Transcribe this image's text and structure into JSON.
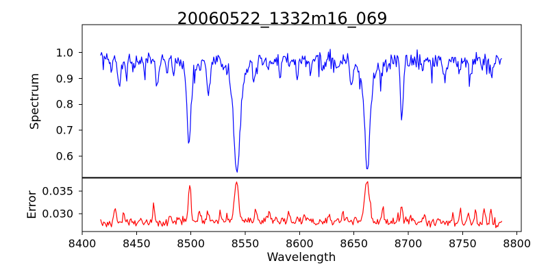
{
  "title": "20060522_1332m16_069",
  "axis": {
    "xlabel": "Wavelength",
    "top_ylabel": "Spectrum",
    "bottom_ylabel": "Error"
  },
  "colors": {
    "spectrum_line": "#0000ff",
    "error_line": "#ff0000",
    "spine": "#000000",
    "text": "#000000",
    "background": "#ffffff"
  },
  "random_seed": 1332,
  "chart_data": [
    {
      "type": "line",
      "name": "spectrum",
      "title": "20060522_1332m16_069",
      "ylabel": "Spectrum",
      "line_color": "#0000ff",
      "xlim": [
        8400,
        8804
      ],
      "ylim": [
        0.518,
        1.1077
      ],
      "yticks": [
        1.0,
        0.9,
        0.8,
        0.7,
        0.6
      ],
      "ytick_labels": [
        "1.0",
        "0.9",
        "0.8",
        "0.7",
        "0.6"
      ],
      "xticks": [],
      "xtick_labels": [],
      "x_start": 8417,
      "x_end": 8786,
      "x_step": 0.8,
      "continuum": 0.972,
      "noise": {
        "sigma_amp": 0.032,
        "down_spike_prob": 0.07,
        "down_spike_base": 0.012,
        "down_spike_amp": 0.04,
        "up_spike_prob": 0.04,
        "up_spike_base": 0.008,
        "up_spike_amp": 0.02
      },
      "absorption_features": [
        [
          8434,
          0.1,
          1.4
        ],
        [
          8441,
          0.055,
          1.0
        ],
        [
          8447,
          0.04,
          0.9
        ],
        [
          8457,
          0.035,
          0.9
        ],
        [
          8469,
          0.1,
          1.3
        ],
        [
          8478,
          0.04,
          0.9
        ],
        [
          8484,
          0.06,
          1.0
        ],
        [
          8498.3,
          0.28,
          1.7
        ],
        [
          8498.3,
          0.06,
          4.5
        ],
        [
          8508,
          0.04,
          0.9
        ],
        [
          8516,
          0.13,
          1.5
        ],
        [
          8542.3,
          0.3,
          2.4
        ],
        [
          8542.3,
          0.135,
          6.0
        ],
        [
          8558,
          0.075,
          1.2
        ],
        [
          8571,
          0.04,
          0.9
        ],
        [
          8582,
          0.05,
          1.0
        ],
        [
          8598,
          0.06,
          1.1
        ],
        [
          8610,
          0.05,
          1.0
        ],
        [
          8621,
          0.04,
          0.9
        ],
        [
          8634,
          0.04,
          0.9
        ],
        [
          8648,
          0.1,
          1.3
        ],
        [
          8662.3,
          0.295,
          2.2
        ],
        [
          8662.3,
          0.125,
          5.5
        ],
        [
          8675,
          0.07,
          1.1
        ],
        [
          8682,
          0.05,
          0.9
        ],
        [
          8694,
          0.21,
          1.4
        ],
        [
          8713,
          0.055,
          1.0
        ],
        [
          8722,
          0.04,
          0.9
        ],
        [
          8733,
          0.08,
          1.2
        ],
        [
          8747,
          0.065,
          1.0
        ],
        [
          8757,
          0.08,
          1.1
        ],
        [
          8768,
          0.05,
          0.9
        ],
        [
          8777,
          0.06,
          1.0
        ]
      ]
    },
    {
      "type": "line",
      "name": "error",
      "ylabel": "Error",
      "xlabel": "Wavelength",
      "line_color": "#ff0000",
      "xlim": [
        8400,
        8804
      ],
      "ylim": [
        0.02606,
        0.03788
      ],
      "xticks": [
        8400,
        8450,
        8500,
        8550,
        8600,
        8650,
        8700,
        8750,
        8800
      ],
      "xtick_labels": [
        "8400",
        "8450",
        "8500",
        "8550",
        "8600",
        "8650",
        "8700",
        "8750",
        "8800"
      ],
      "yticks": [
        0.035,
        0.03
      ],
      "ytick_labels": [
        "0.035",
        "0.030"
      ],
      "x_start": 8417,
      "x_end": 8786,
      "x_step": 0.9,
      "baseline": 0.0278,
      "noise": {
        "sigma_amp": 0.001,
        "up_spike_prob": 0.06,
        "up_spike_base": 0.0005,
        "up_spike_amp": 0.0012
      },
      "emission_features": [
        [
          8430,
          0.0033,
          1.0
        ],
        [
          8438,
          0.0015,
          1.0
        ],
        [
          8453,
          0.0013,
          0.9
        ],
        [
          8466,
          0.0034,
          1.0
        ],
        [
          8481,
          0.0018,
          0.9
        ],
        [
          8499,
          0.008,
          1.2
        ],
        [
          8508,
          0.0022,
          1.0
        ],
        [
          8516,
          0.0015,
          1.0
        ],
        [
          8527,
          0.0018,
          0.9
        ],
        [
          8542,
          0.0092,
          1.8
        ],
        [
          8560,
          0.0024,
          1.0
        ],
        [
          8572,
          0.0018,
          0.9
        ],
        [
          8590,
          0.0014,
          0.9
        ],
        [
          8605,
          0.0018,
          0.9
        ],
        [
          8627,
          0.0012,
          0.9
        ],
        [
          8640,
          0.0018,
          0.9
        ],
        [
          8662,
          0.0094,
          2.2
        ],
        [
          8676,
          0.0022,
          1.0
        ],
        [
          8694,
          0.0042,
          1.0
        ],
        [
          8705,
          0.0014,
          0.9
        ],
        [
          8715,
          0.0016,
          0.9
        ],
        [
          8727,
          0.0013,
          0.9
        ],
        [
          8741,
          0.0028,
          0.8
        ],
        [
          8748,
          0.003,
          0.9
        ],
        [
          8755,
          0.002,
          0.8
        ],
        [
          8762,
          0.0028,
          0.8
        ],
        [
          8770,
          0.0033,
          0.8
        ],
        [
          8776,
          0.0028,
          0.8
        ],
        [
          8570,
          0.0006,
          80
        ]
      ]
    }
  ]
}
